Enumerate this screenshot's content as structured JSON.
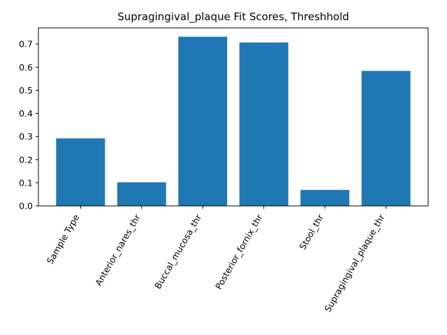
{
  "chart_data": {
    "type": "bar",
    "title": "Supragingival_plaque Fit Scores, Threshhold",
    "xlabel": "",
    "ylabel": "",
    "categories": [
      "Sample Type",
      "Anterior_nares_thr",
      "Buccal_mucosa_thr",
      "Posterior_fornix_thr",
      "Stool_thr",
      "Supragingival_plaque_thr"
    ],
    "values": [
      0.292,
      0.102,
      0.732,
      0.707,
      0.069,
      0.584
    ],
    "ylim": [
      0,
      0.77
    ],
    "yticks": [
      "0.0",
      "0.1",
      "0.2",
      "0.3",
      "0.4",
      "0.5",
      "0.6",
      "0.7"
    ],
    "bar_color": "#1f77b4",
    "grid": false,
    "legend": "none"
  }
}
